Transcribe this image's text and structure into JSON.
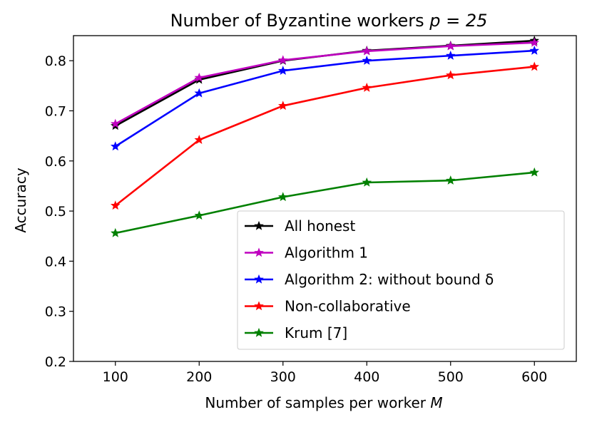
{
  "chart_data": {
    "type": "line",
    "title_main": "Number of Byzantine workers ",
    "title_math": "p = 25",
    "xlabel_main": "Number of samples per worker ",
    "xlabel_math": "M",
    "ylabel": "Accuracy",
    "x": [
      100,
      200,
      300,
      400,
      500,
      600
    ],
    "xlim": [
      50,
      650
    ],
    "ylim": [
      0.2,
      0.85
    ],
    "xticks": [
      "100",
      "200",
      "300",
      "400",
      "500",
      "600"
    ],
    "yticks": [
      "0.2",
      "0.3",
      "0.4",
      "0.5",
      "0.6",
      "0.7",
      "0.8"
    ],
    "grid": false,
    "legend_position": "lower-right",
    "series": [
      {
        "name": "All honest",
        "color": "#000000",
        "marker": "star",
        "values": [
          0.67,
          0.762,
          0.8,
          0.82,
          0.83,
          0.84
        ]
      },
      {
        "name": "Algorithm 1",
        "color": "#bf00bf",
        "marker": "star",
        "values": [
          0.674,
          0.766,
          0.801,
          0.819,
          0.829,
          0.836
        ]
      },
      {
        "name": "Algorithm 2: without bound δ",
        "color": "#0000ff",
        "marker": "star",
        "values": [
          0.629,
          0.735,
          0.78,
          0.8,
          0.81,
          0.82
        ]
      },
      {
        "name": "Non-collaborative",
        "color": "#ff0000",
        "marker": "star",
        "values": [
          0.511,
          0.642,
          0.71,
          0.746,
          0.771,
          0.788
        ]
      },
      {
        "name": "Krum [7]",
        "color": "#008000",
        "marker": "star",
        "values": [
          0.456,
          0.491,
          0.528,
          0.557,
          0.561,
          0.577
        ]
      }
    ]
  }
}
